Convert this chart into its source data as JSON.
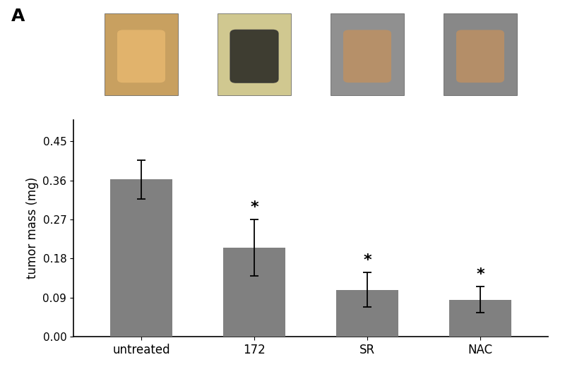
{
  "categories": [
    "untreated",
    "172",
    "SR",
    "NAC"
  ],
  "values": [
    0.362,
    0.205,
    0.108,
    0.085
  ],
  "errors": [
    0.045,
    0.065,
    0.04,
    0.03
  ],
  "bar_color": "#808080",
  "ylabel": "tumor mass (mg)",
  "ylim": [
    0,
    0.5
  ],
  "yticks": [
    0,
    0.09,
    0.18,
    0.27,
    0.36,
    0.45
  ],
  "panel_label": "A",
  "significance": [
    false,
    true,
    true,
    true
  ],
  "bar_width": 0.55,
  "figure_width": 8.0,
  "figure_height": 5.3,
  "img_colors": [
    [
      "#d4a855",
      "#c4943a",
      "#b8823a"
    ],
    [
      "#e8e0c0",
      "#2a2a2a",
      "#e0d8b0"
    ],
    [
      "#909090",
      "#c4a060",
      "#808080"
    ],
    [
      "#888888",
      "#c4a060",
      "#707070"
    ]
  ]
}
